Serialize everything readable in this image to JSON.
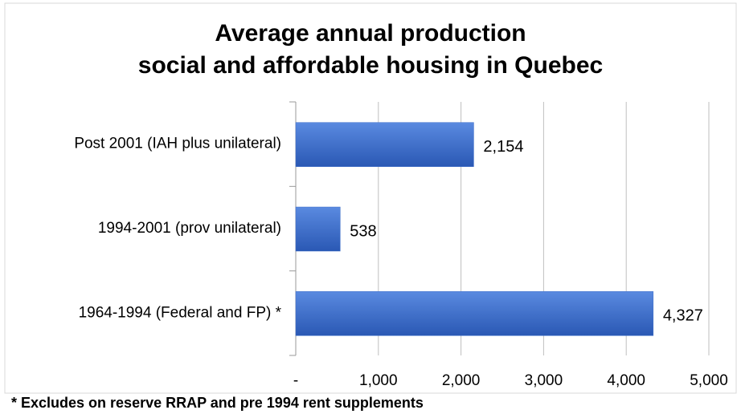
{
  "chart_data": {
    "type": "bar",
    "orientation": "horizontal",
    "title": [
      "Average annual production",
      "social and affordable housing in Quebec"
    ],
    "categories": [
      "Post 2001 (IAH plus unilateral)",
      "1994-2001 (prov unilateral)",
      "1964-1994 (Federal and FP) *"
    ],
    "values": [
      2154,
      538,
      4327
    ],
    "value_labels": [
      "2,154",
      "538",
      "4,327"
    ],
    "color": "#3a6bc8",
    "xlim": [
      0,
      5000
    ],
    "xticks": [
      {
        "value": 0,
        "label": "-"
      },
      {
        "value": 1000,
        "label": "1,000"
      },
      {
        "value": 2000,
        "label": "2,000"
      },
      {
        "value": 3000,
        "label": "3,000"
      },
      {
        "value": 4000,
        "label": "4,000"
      },
      {
        "value": 5000,
        "label": "5,000"
      }
    ],
    "grid": true,
    "footnote": "* Excludes on reserve RRAP and pre 1994 rent supplements"
  }
}
